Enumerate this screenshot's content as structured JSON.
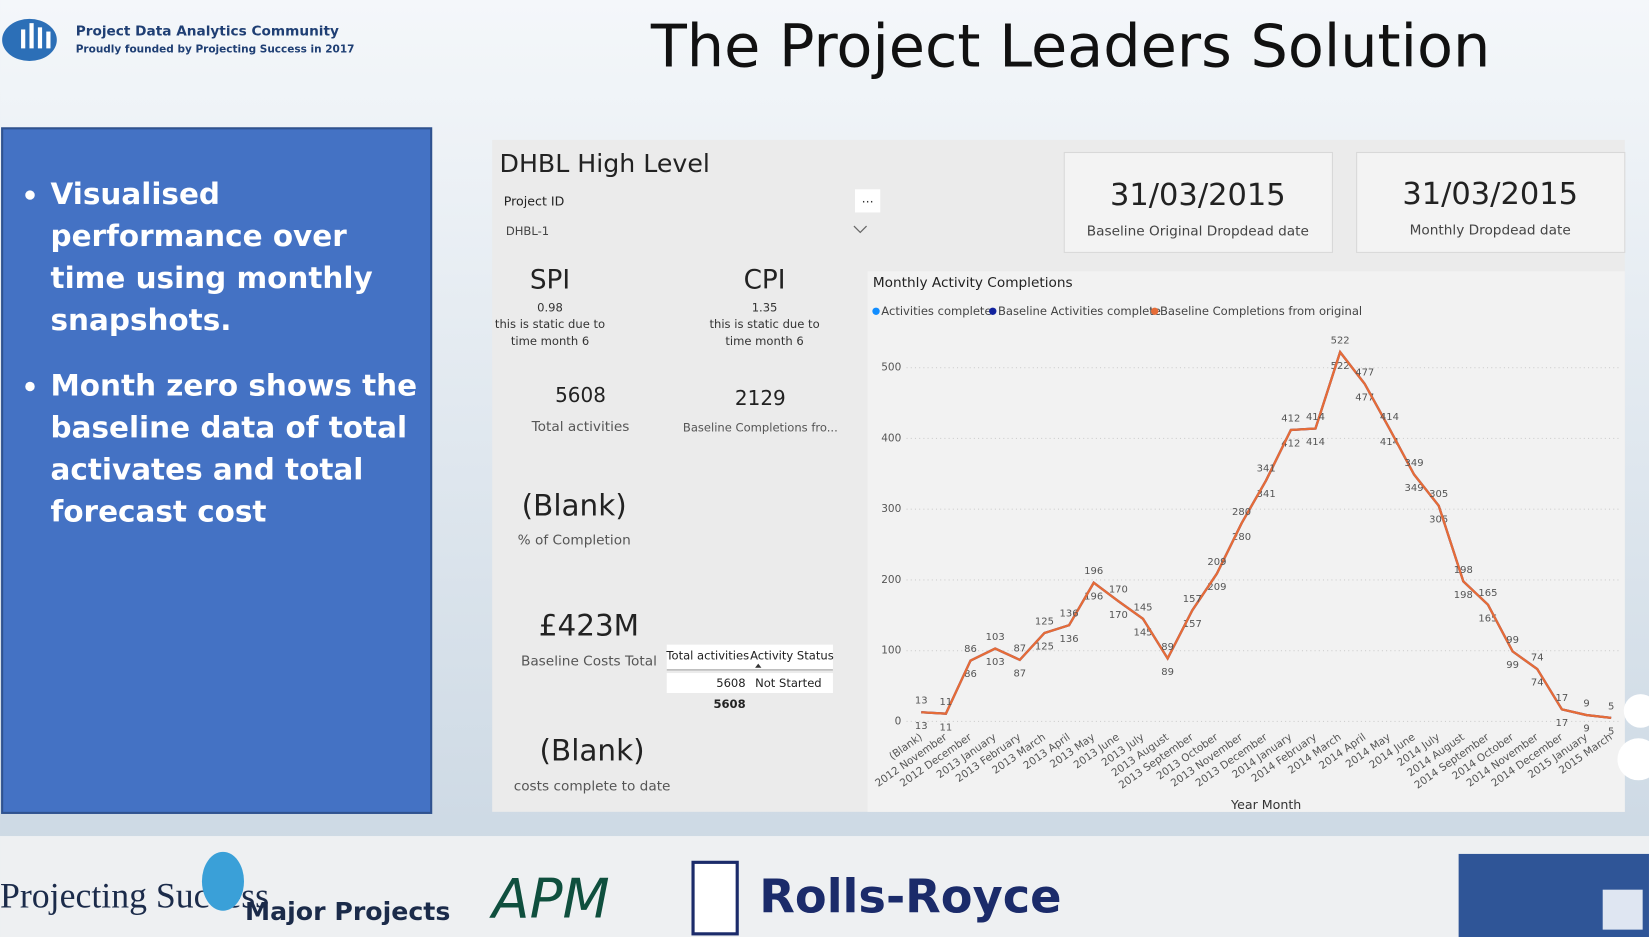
{
  "header": {
    "org_name": "Project Data Analytics Community",
    "org_tagline": "Proudly founded by Projecting Success in 2017",
    "title": "The Project Leaders Solution"
  },
  "slide": {
    "bullets": [
      "Visualised performance over time using monthly snapshots.",
      "Month zero shows the baseline data of total activates and total forecast cost"
    ]
  },
  "dashboard": {
    "title": "DHBL High Level",
    "slicer": {
      "label": "Project ID",
      "value": "DHBL-1",
      "menu": "..."
    },
    "date_cards": [
      {
        "value": "31/03/2015",
        "label": "Baseline Original Dropdead date"
      },
      {
        "value": "31/03/2015",
        "label": "Monthly Dropdead date"
      }
    ],
    "spi": {
      "label": "SPI",
      "value": "0.98",
      "note": "this is static due to time month 6"
    },
    "cpi": {
      "label": "CPI",
      "value": "1.35",
      "note": "this is static due to time month 6"
    },
    "cards": [
      {
        "value": "5608",
        "label": "Total activities"
      },
      {
        "value": "2129",
        "label": "Baseline Completions fro..."
      },
      {
        "value": "(Blank)",
        "label": "% of Completion"
      },
      {
        "value": "£423M",
        "label": "Baseline Costs Total"
      },
      {
        "value": "(Blank)",
        "label": "costs complete to date"
      }
    ],
    "table": {
      "columns": [
        "Total activities",
        "Activity Status"
      ],
      "rows": [
        [
          "5608",
          "Not Started"
        ]
      ],
      "total": "5608"
    }
  },
  "chart_data": {
    "type": "line",
    "title": "Monthly Activity Completions",
    "x_label": "Year Month",
    "categories": [
      "(Blank)",
      "2012 November",
      "2012 December",
      "2013 January",
      "2013 February",
      "2013 March",
      "2013 April",
      "2013 May",
      "2013 June",
      "2013 July",
      "2013 August",
      "2013 September",
      "2013 October",
      "2013 November",
      "2013 December",
      "2014 January",
      "2014 February",
      "2014 March",
      "2014 April",
      "2014 May",
      "2014 June",
      "2014 July",
      "2014 August",
      "2014 September",
      "2014 October",
      "2014 November",
      "2014 December",
      "2015 January",
      "2015 March"
    ],
    "series": [
      {
        "name": "Activities complete",
        "color": "#118dff",
        "values": [
          null,
          null,
          null,
          null,
          null,
          null,
          null,
          null,
          null,
          null,
          null,
          null,
          null,
          null,
          null,
          null,
          null,
          null,
          null,
          null,
          null,
          null,
          null,
          null,
          null,
          null,
          null,
          null,
          null
        ]
      },
      {
        "name": "Baseline Activities complete",
        "color": "#12239e",
        "values": [
          13,
          11,
          86,
          103,
          87,
          125,
          136,
          196,
          170,
          145,
          89,
          157,
          209,
          280,
          341,
          412,
          414,
          522,
          477,
          414,
          349,
          305,
          198,
          165,
          99,
          74,
          17,
          9,
          5
        ]
      },
      {
        "name": "Baseline Completions from original",
        "color": "#e66c37",
        "values": [
          13,
          11,
          86,
          103,
          87,
          125,
          136,
          196,
          170,
          145,
          89,
          157,
          209,
          280,
          341,
          412,
          414,
          522,
          477,
          414,
          349,
          305,
          198,
          165,
          99,
          74,
          17,
          9,
          5
        ]
      }
    ],
    "ylim": [
      0,
      550
    ],
    "yticks": [
      0,
      100,
      200,
      300,
      400,
      500
    ],
    "grid": true
  },
  "footer": {
    "logos": [
      "Projecting Success",
      "Major Projects",
      "APM",
      "Rolls-Royce"
    ]
  }
}
